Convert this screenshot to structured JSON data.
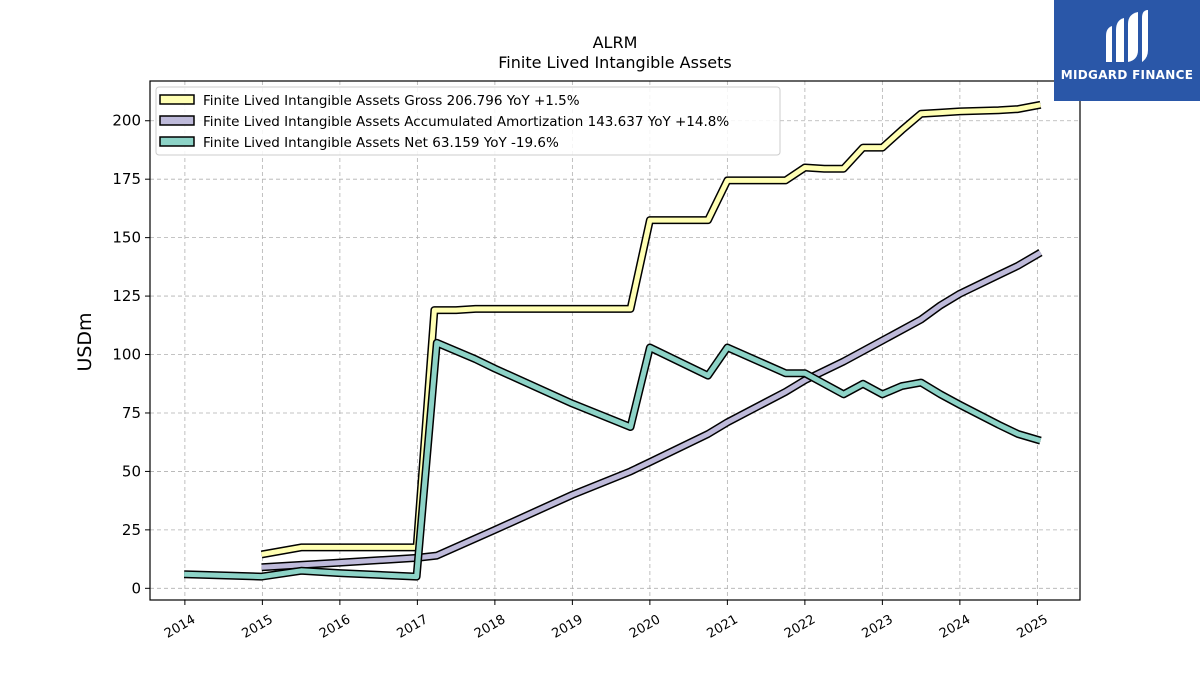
{
  "chart_data": {
    "type": "line",
    "title": "ALRM",
    "subtitle": "Finite Lived Intangible Assets",
    "ylabel": "USDm",
    "xlabel": "",
    "ylim": [
      -5,
      217
    ],
    "xlim": [
      2013.55,
      2025.55
    ],
    "yticks": [
      0,
      25,
      50,
      75,
      100,
      125,
      150,
      175,
      200
    ],
    "xticks": [
      2014,
      2015,
      2016,
      2017,
      2018,
      2019,
      2020,
      2021,
      2022,
      2023,
      2024,
      2025
    ],
    "grid": true,
    "legend_position": "top-left",
    "series": [
      {
        "name": "Finite Lived Intangible Assets Gross  206.796 YoY +1.5%",
        "color": "#ffffb3",
        "x": [
          2014.99,
          2015.5,
          2016.0,
          2016.99,
          2017.22,
          2017.5,
          2017.75,
          2018.0,
          2019.0,
          2019.75,
          2020.0,
          2020.5,
          2020.75,
          2021.0,
          2021.5,
          2021.75,
          2022.0,
          2022.25,
          2022.5,
          2022.75,
          2023.0,
          2023.25,
          2023.5,
          2023.75,
          2024.0,
          2024.5,
          2024.75,
          2025.04
        ],
        "y": [
          14.5,
          17.5,
          17.5,
          17.5,
          119,
          119,
          119.5,
          119.5,
          119.5,
          119.5,
          157.5,
          157.5,
          157.5,
          174.5,
          174.5,
          174.5,
          180,
          179.5,
          179.5,
          188.5,
          188.5,
          196,
          203,
          203.5,
          204,
          204.5,
          205,
          206.8
        ]
      },
      {
        "name": "Finite Lived Intangible Assets Accumulated Amortization  143.637 YoY +14.8%",
        "color": "#bebada",
        "x": [
          2014.99,
          2015.5,
          2016.0,
          2016.99,
          2017.25,
          2018.0,
          2019.0,
          2019.75,
          2020.0,
          2020.75,
          2021.0,
          2021.75,
          2022.0,
          2022.5,
          2023.0,
          2023.5,
          2023.75,
          2024.0,
          2024.5,
          2024.75,
          2025.04
        ],
        "y": [
          9,
          10,
          11,
          13,
          14,
          25,
          40,
          50,
          54,
          66,
          71,
          84,
          89,
          97,
          106,
          115,
          121,
          126,
          134,
          138,
          143.6
        ]
      },
      {
        "name": "Finite Lived Intangible Assets Net  63.159 YoY -19.6%",
        "color": "#8dd3c7",
        "x": [
          2013.99,
          2014.99,
          2015.5,
          2016.0,
          2016.99,
          2017.25,
          2017.75,
          2018.0,
          2019.0,
          2019.75,
          2020.0,
          2020.75,
          2021.0,
          2021.75,
          2022.0,
          2022.5,
          2022.75,
          2023.0,
          2023.25,
          2023.5,
          2023.75,
          2024.0,
          2024.5,
          2024.75,
          2025.04
        ],
        "y": [
          6,
          5,
          7.5,
          6.5,
          5,
          105,
          98,
          94,
          79,
          69,
          103,
          91,
          103,
          92,
          92,
          83,
          87.5,
          83,
          86.5,
          88,
          83,
          78.5,
          70,
          66,
          63.2
        ]
      }
    ]
  },
  "logo": {
    "text": "MIDGARD FINANCE",
    "icon": "midgard-m-logo-icon",
    "color": "#2a57a8"
  }
}
